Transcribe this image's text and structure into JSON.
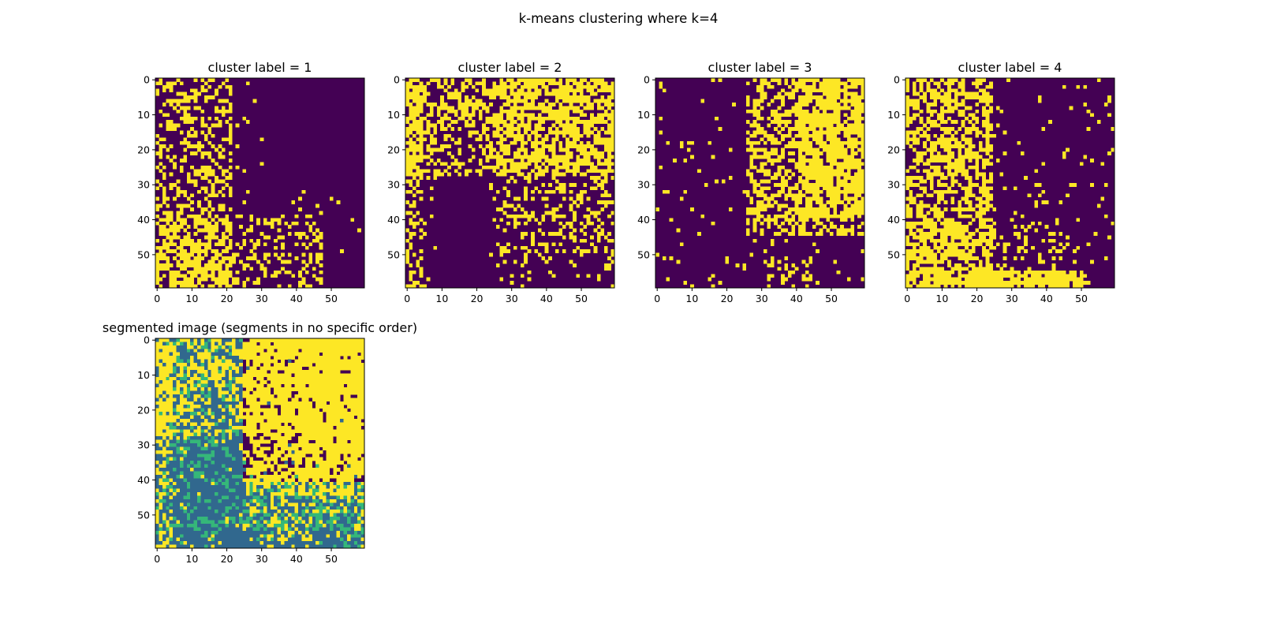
{
  "figure": {
    "suptitle": "k-means clustering where k=4"
  },
  "chart_data": [
    {
      "type": "heatmap",
      "title": "cluster label = 1",
      "grid_size": [
        60,
        60
      ],
      "xticks": [
        0,
        10,
        20,
        30,
        40,
        50
      ],
      "yticks": [
        0,
        10,
        20,
        30,
        40,
        50
      ],
      "xlim": [
        -0.5,
        59.5
      ],
      "ylim": [
        59.5,
        -0.5
      ],
      "colormap": [
        "#440154",
        "#fde725"
      ],
      "value_range": [
        0,
        1
      ],
      "coverage_note": "binary mask; yellow concentrated in left columns 0-25 and lower region rows 40-59"
    },
    {
      "type": "heatmap",
      "title": "cluster label = 2",
      "grid_size": [
        60,
        60
      ],
      "xticks": [
        0,
        10,
        20,
        30,
        40,
        50
      ],
      "yticks": [
        0,
        10,
        20,
        30,
        40,
        50
      ],
      "xlim": [
        -0.5,
        59.5
      ],
      "ylim": [
        59.5,
        -0.5
      ],
      "colormap": [
        "#440154",
        "#fde725"
      ],
      "value_range": [
        0,
        1
      ],
      "coverage_note": "binary mask; yellow spread across upper half and right side"
    },
    {
      "type": "heatmap",
      "title": "cluster label = 3",
      "grid_size": [
        60,
        60
      ],
      "xticks": [
        0,
        10,
        20,
        30,
        40,
        50
      ],
      "yticks": [
        0,
        10,
        20,
        30,
        40,
        50
      ],
      "xlim": [
        -0.5,
        59.5
      ],
      "ylim": [
        59.5,
        -0.5
      ],
      "colormap": [
        "#440154",
        "#fde725"
      ],
      "value_range": [
        0,
        1
      ],
      "coverage_note": "binary mask; yellow concentrated in upper right, columns 25-59 rows 0-45"
    },
    {
      "type": "heatmap",
      "title": "cluster label = 4",
      "grid_size": [
        60,
        60
      ],
      "xticks": [
        0,
        10,
        20,
        30,
        40,
        50
      ],
      "yticks": [
        0,
        10,
        20,
        30,
        40,
        50
      ],
      "xlim": [
        -0.5,
        59.5
      ],
      "ylim": [
        59.5,
        -0.5
      ],
      "colormap": [
        "#440154",
        "#fde725"
      ],
      "value_range": [
        0,
        1
      ],
      "coverage_note": "binary mask; yellow in left band columns 0-25 and bottom strip rows 55-59"
    },
    {
      "type": "heatmap",
      "title": "segmented image (segments in no specific order)",
      "grid_size": [
        60,
        60
      ],
      "xticks": [
        0,
        10,
        20,
        30,
        40,
        50
      ],
      "yticks": [
        0,
        10,
        20,
        30,
        40,
        50
      ],
      "xlim": [
        -0.5,
        59.5
      ],
      "ylim": [
        59.5,
        -0.5
      ],
      "colormap": [
        "#440154",
        "#31688e",
        "#35b779",
        "#fde725"
      ],
      "value_range": [
        1,
        4
      ],
      "coverage_note": "4-level label map combining the four clusters"
    }
  ]
}
